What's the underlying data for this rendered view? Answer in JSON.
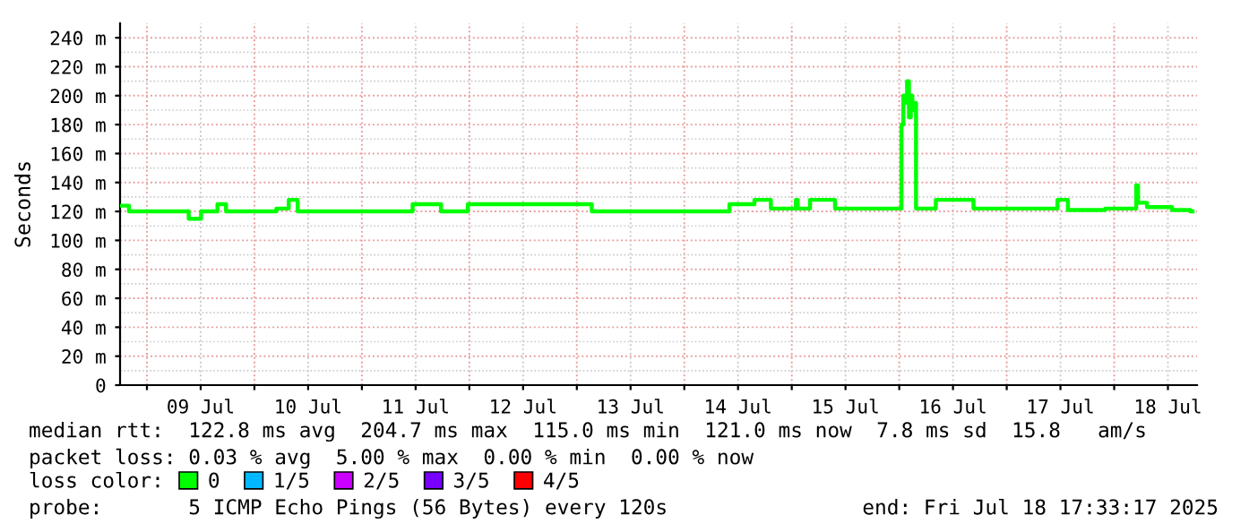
{
  "chart_data": {
    "type": "step",
    "ylabel": "Seconds",
    "legend_title": "loss color:",
    "legend": "bottom",
    "grid": true,
    "line_style": "solid",
    "marker": "none",
    "x": [
      "2025-07-08T18:00",
      "2025-07-08T20:00",
      "2025-07-09T09:20",
      "2025-07-09T12:05",
      "2025-07-09T15:45",
      "2025-07-09T17:40",
      "2025-07-10T04:55",
      "2025-07-10T07:40",
      "2025-07-10T09:40",
      "2025-07-11T11:20",
      "2025-07-11T17:40",
      "2025-07-11T23:40",
      "2025-07-13T03:20",
      "2025-07-14T10:05",
      "2025-07-14T15:40",
      "2025-07-14T19:20",
      "2025-07-15T00:55",
      "2025-07-15T01:20",
      "2025-07-15T04:05",
      "2025-07-15T09:40",
      "2025-07-16T00:30",
      "2025-07-16T00:55",
      "2025-07-16T01:20",
      "2025-07-16T01:45",
      "2025-07-16T02:10",
      "2025-07-16T02:35",
      "2025-07-16T02:55",
      "2025-07-16T03:20",
      "2025-07-16T03:45",
      "2025-07-16T08:10",
      "2025-07-16T16:35",
      "2025-07-17T11:20",
      "2025-07-17T13:40",
      "2025-07-17T22:00",
      "2025-07-18T04:55",
      "2025-07-18T05:20",
      "2025-07-18T07:20",
      "2025-07-18T12:55",
      "2025-07-18T17:00",
      "2025-07-18T17:30"
    ],
    "series": [
      {
        "name": "0",
        "color": "#00ff00",
        "values": [
          124,
          120,
          115,
          120,
          125,
          120,
          122,
          128,
          120,
          125,
          120,
          125,
          120,
          125,
          128,
          122,
          128,
          122,
          128,
          122,
          180,
          200,
          195,
          210,
          185,
          200,
          190,
          195,
          122,
          128,
          122,
          128,
          121,
          122,
          138,
          126,
          123,
          121,
          120,
          120
        ]
      },
      {
        "name": "1/5",
        "color": "#00b8ff",
        "values": [
          null,
          null,
          null,
          null,
          null,
          null,
          null,
          null,
          null,
          null,
          null,
          null,
          null,
          null,
          null,
          null,
          null,
          null,
          null,
          null,
          null,
          null,
          null,
          null,
          null,
          null,
          null,
          null,
          null,
          null,
          null,
          null,
          null,
          null,
          null,
          null,
          null,
          null,
          null,
          null
        ]
      },
      {
        "name": "2/5",
        "color": "#cc00ff",
        "values": [
          null,
          null,
          null,
          null,
          null,
          null,
          null,
          null,
          null,
          null,
          null,
          null,
          null,
          null,
          null,
          null,
          null,
          null,
          null,
          null,
          null,
          null,
          null,
          null,
          null,
          null,
          null,
          null,
          null,
          null,
          null,
          null,
          null,
          null,
          null,
          null,
          null,
          null,
          null,
          null
        ]
      },
      {
        "name": "3/5",
        "color": "#7700ff",
        "values": [
          null,
          null,
          null,
          null,
          null,
          null,
          null,
          null,
          null,
          null,
          null,
          null,
          null,
          null,
          null,
          null,
          null,
          null,
          null,
          null,
          null,
          null,
          null,
          null,
          null,
          null,
          null,
          null,
          null,
          null,
          null,
          null,
          null,
          null,
          null,
          null,
          null,
          null,
          null,
          null
        ]
      },
      {
        "name": "4/5",
        "color": "#ff0000",
        "values": [
          null,
          null,
          null,
          null,
          null,
          null,
          null,
          null,
          null,
          null,
          null,
          null,
          null,
          null,
          null,
          null,
          null,
          null,
          null,
          null,
          null,
          null,
          null,
          null,
          null,
          null,
          null,
          null,
          null,
          null,
          null,
          null,
          null,
          null,
          null,
          null,
          null,
          null,
          null,
          null
        ]
      }
    ],
    "xlim": [
      "2025-07-08T18:00",
      "2025-07-18T18:30"
    ],
    "xticks": [
      {
        "value": "2025-07-09T00:00",
        "label": null
      },
      {
        "value": "2025-07-09T12:00",
        "label": "09 Jul"
      },
      {
        "value": "2025-07-10T00:00",
        "label": null
      },
      {
        "value": "2025-07-10T12:00",
        "label": "10 Jul"
      },
      {
        "value": "2025-07-11T00:00",
        "label": null
      },
      {
        "value": "2025-07-11T12:00",
        "label": "11 Jul"
      },
      {
        "value": "2025-07-12T00:00",
        "label": null
      },
      {
        "value": "2025-07-12T12:00",
        "label": "12 Jul"
      },
      {
        "value": "2025-07-13T00:00",
        "label": null
      },
      {
        "value": "2025-07-13T12:00",
        "label": "13 Jul"
      },
      {
        "value": "2025-07-14T00:00",
        "label": null
      },
      {
        "value": "2025-07-14T12:00",
        "label": "14 Jul"
      },
      {
        "value": "2025-07-15T00:00",
        "label": null
      },
      {
        "value": "2025-07-15T12:00",
        "label": "15 Jul"
      },
      {
        "value": "2025-07-16T00:00",
        "label": null
      },
      {
        "value": "2025-07-16T12:00",
        "label": "16 Jul"
      },
      {
        "value": "2025-07-17T00:00",
        "label": null
      },
      {
        "value": "2025-07-17T12:00",
        "label": "17 Jul"
      },
      {
        "value": "2025-07-18T00:00",
        "label": null
      },
      {
        "value": "2025-07-18T12:00",
        "label": "18 Jul"
      }
    ],
    "ylim": [
      0,
      250
    ],
    "yticks": [
      0,
      {
        "value": 20,
        "label": "20 m"
      },
      {
        "value": 40,
        "label": "40 m"
      },
      {
        "value": 60,
        "label": "60 m"
      },
      {
        "value": 80,
        "label": "80 m"
      },
      {
        "value": 100,
        "label": "100 m"
      },
      {
        "value": 120,
        "label": "120 m"
      },
      {
        "value": 140,
        "label": "140 m"
      },
      {
        "value": 160,
        "label": "160 m"
      },
      {
        "value": 180,
        "label": "180 m"
      },
      {
        "value": 200,
        "label": "200 m"
      },
      {
        "value": 220,
        "label": "220 m"
      },
      {
        "value": 240,
        "label": "240 m"
      }
    ],
    "annotations": [
      "median rtt:  122.8 ms avg  204.7 ms max  115.0 ms min  121.0 ms now  7.8 ms sd  15.8   am/s",
      "packet loss: 0.03 % avg  5.00 % max  0.00 % min  0.00 % now",
      "probe:       5 ICMP Echo Pings (56 Bytes) every 120s",
      "end: Fri Jul 18 17:33:17 2025"
    ]
  }
}
